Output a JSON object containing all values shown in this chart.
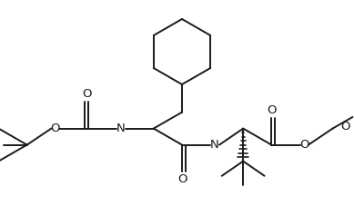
{
  "line_color": "#1a1a1a",
  "bg_color": "#ffffff",
  "lw": 1.4,
  "figsize": [
    3.89,
    2.27
  ],
  "dpi": 100,
  "xlim": [
    0,
    7.78
  ],
  "ylim": [
    0,
    4.54
  ]
}
